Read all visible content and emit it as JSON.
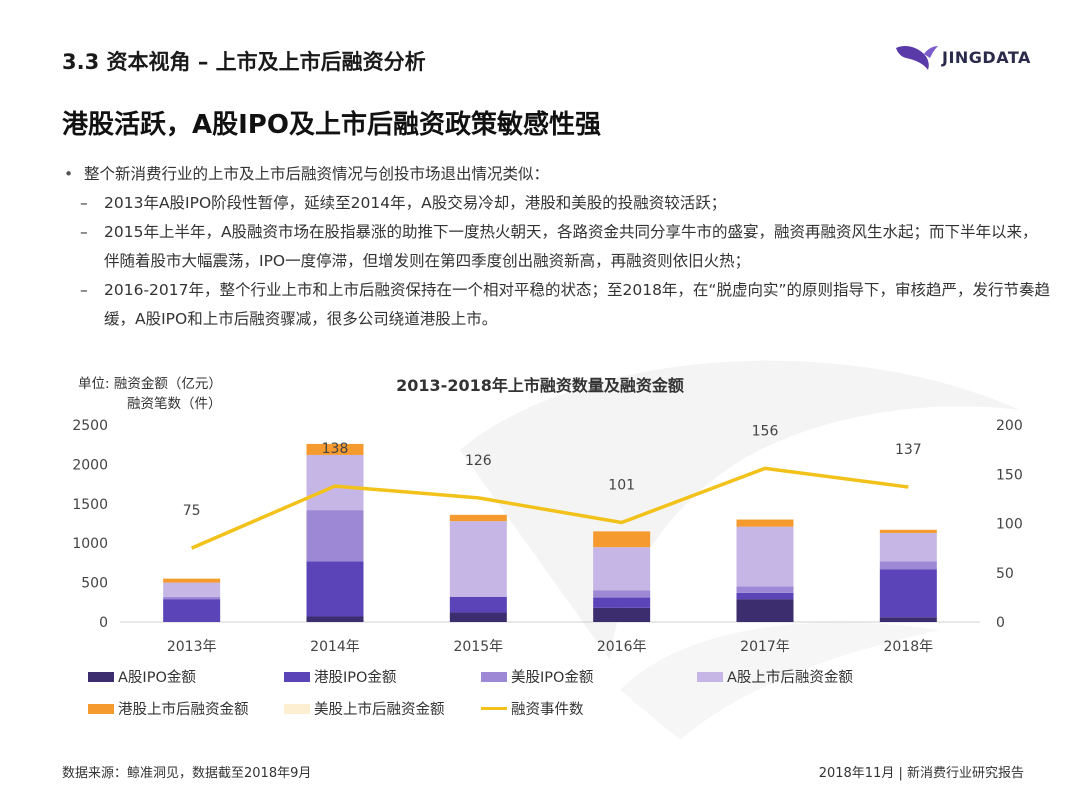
{
  "header": {
    "section_title": "3.3 资本视角 – 上市及上市后融资分析",
    "logo_text": "JINGDATA"
  },
  "headline": "港股活跃，A股IPO及上市后融资政策敏感性强",
  "bullets": {
    "main": "整个新消费行业的上市及上市后融资情况与创投市场退出情况类似：",
    "subs": [
      {
        "dash": "–",
        "text": "2013年A股IPO阶段性暂停，延续至2014年，A股交易冷却，港股和美股的投融资较活跃；"
      },
      {
        "dash": "–",
        "text": "2015年上半年，A股融资市场在股指暴涨的助推下一度热火朝天，各路资金共同分享牛市的盛宴，融资再融资风生水起；而下半年以来，伴随着股市大幅震荡，IPO一度停滞，但增发则在第四季度创出融资新高，再融资则依旧火热；"
      },
      {
        "dash": "–",
        "text": "2016-2017年，整个行业上市和上市后融资保持在一个相对平稳的状态；至2018年，在“脱虚向实”的原则指导下，审核趋严，发行节奏趋缓，A股IPO和上市后融资骤减，很多公司绕道港股上市。"
      }
    ]
  },
  "chart_unit": {
    "prefix": "单位:",
    "line1": "融资金额（亿元）",
    "line2": "融资笔数（件）"
  },
  "chart_data": {
    "type": "bar",
    "title": "2013-2018年上市融资数量及融资金额",
    "categories": [
      "2013年",
      "2014年",
      "2015年",
      "2016年",
      "2017年",
      "2018年"
    ],
    "stacked": true,
    "series": [
      {
        "name": "A股IPO金额",
        "color": "#3b2d6e",
        "values": [
          0,
          70,
          120,
          180,
          290,
          60
        ]
      },
      {
        "name": "港股IPO金额",
        "color": "#5b44b8",
        "values": [
          290,
          700,
          200,
          130,
          80,
          610
        ]
      },
      {
        "name": "美股IPO金额",
        "color": "#9c88d4",
        "values": [
          30,
          650,
          0,
          90,
          80,
          100
        ]
      },
      {
        "name": "A股上市后融资金额",
        "color": "#c5b6e6",
        "values": [
          180,
          700,
          960,
          550,
          760,
          360
        ]
      },
      {
        "name": "港股上市后融资金额",
        "color": "#f59a2e",
        "values": [
          50,
          140,
          80,
          200,
          90,
          40
        ]
      },
      {
        "name": "美股上市后融资金额",
        "color": "#fdf0d2",
        "values": [
          10,
          0,
          0,
          0,
          0,
          0
        ]
      }
    ],
    "line_series": {
      "name": "融资事件数",
      "color": "#f2c21a",
      "axis": "right",
      "values": [
        75,
        138,
        126,
        101,
        156,
        137
      ]
    },
    "ylim_left": [
      0,
      2500
    ],
    "yticks_left": [
      "0",
      "500",
      "1000",
      "1500",
      "2000",
      "2500"
    ],
    "ylim_right": [
      0,
      200
    ],
    "yticks_right": [
      "0",
      "50",
      "100",
      "150",
      "200"
    ],
    "legend_position": "bottom"
  },
  "source": "数据来源：鲸准洞见，数据截至2018年9月",
  "footer_right": "2018年11月 | 新消费行业研究报告"
}
